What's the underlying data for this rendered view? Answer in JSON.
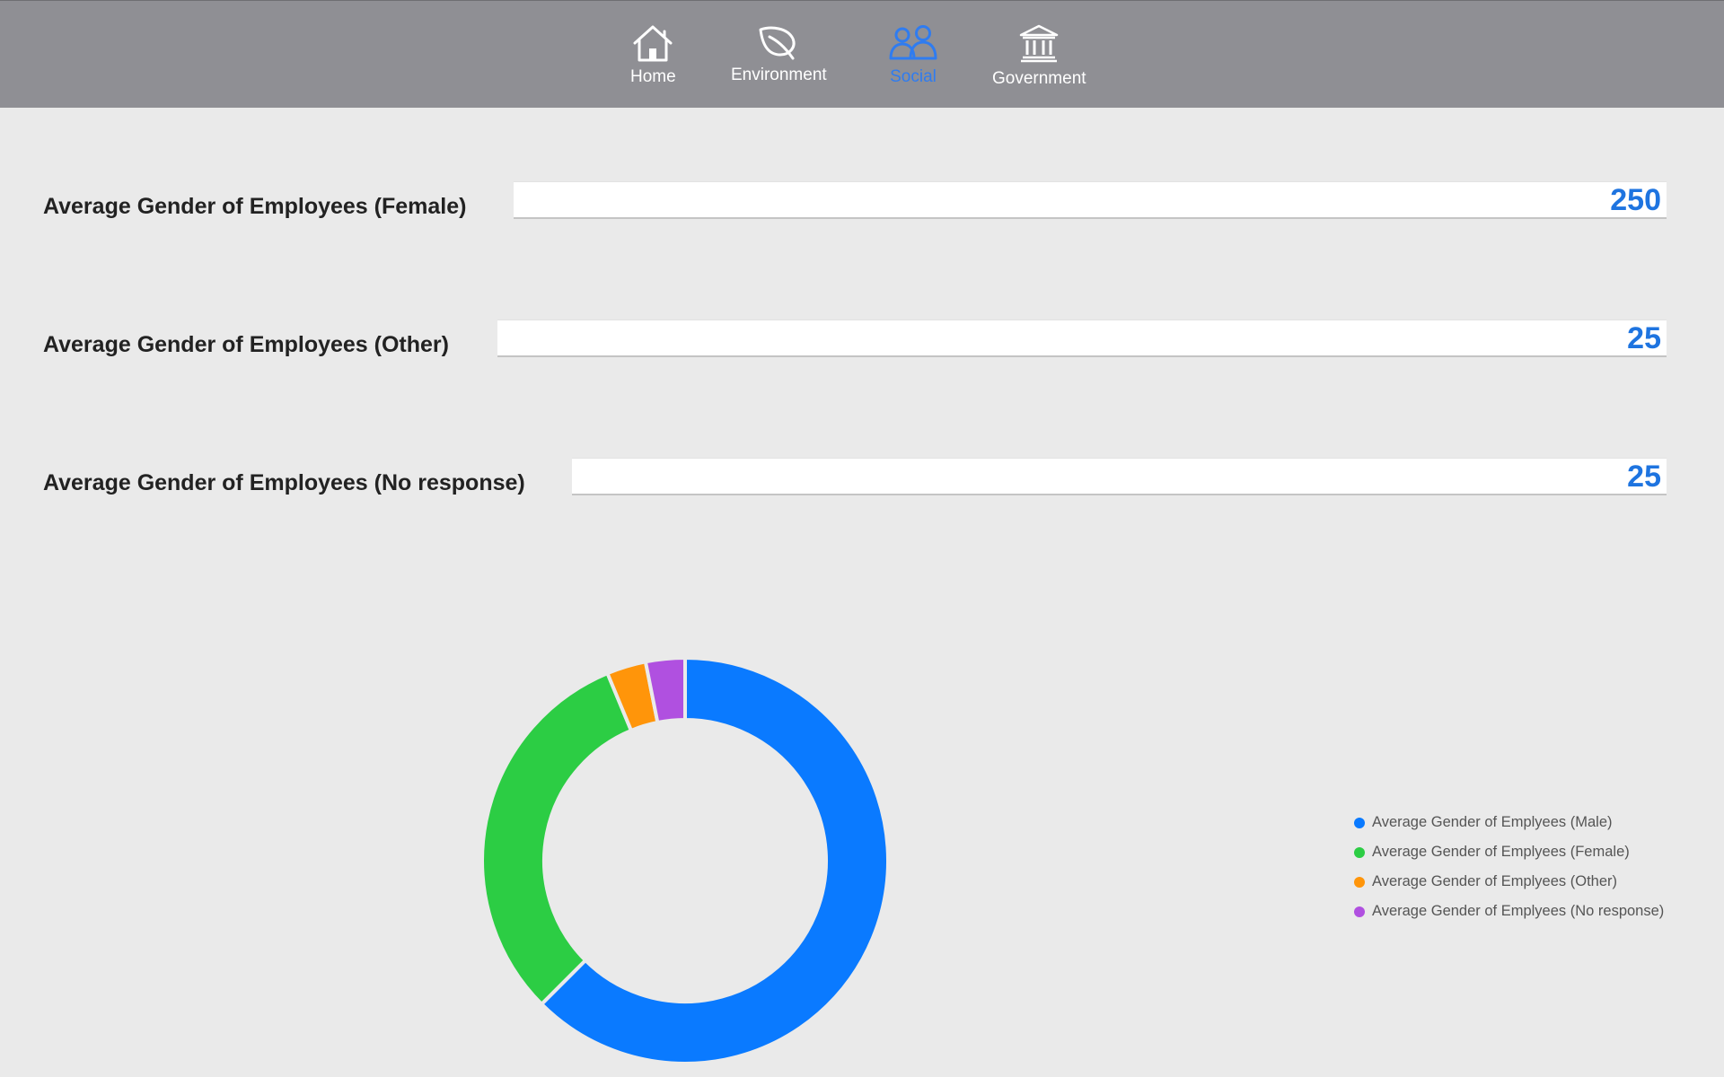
{
  "nav": {
    "tabs": [
      {
        "label": "Home",
        "icon": "home-icon",
        "active": false
      },
      {
        "label": "Environment",
        "icon": "leaf-icon",
        "active": false
      },
      {
        "label": "Social",
        "icon": "people-icon",
        "active": true
      },
      {
        "label": "Government",
        "icon": "institution-icon",
        "active": false
      }
    ],
    "active_color": "#2f7cf0"
  },
  "metrics": [
    {
      "label": "Average Gender of Employees (Female)",
      "value": "250"
    },
    {
      "label": "Average Gender of Employees (Other)",
      "value": "25"
    },
    {
      "label": "Average Gender of Employees (No response)",
      "value": "25"
    }
  ],
  "chart_data": {
    "type": "pie",
    "donut": true,
    "categories": [
      "Average Gender of Emplyees (Male)",
      "Average Gender of Emplyees (Female)",
      "Average Gender of Emplyees (Other)",
      "Average Gender of Emplyees (No response)"
    ],
    "values": [
      500,
      250,
      25,
      25
    ],
    "colors": [
      "#0a7aff",
      "#2ccd44",
      "#ff950a",
      "#b050e0"
    ],
    "legend_placement": "right"
  }
}
